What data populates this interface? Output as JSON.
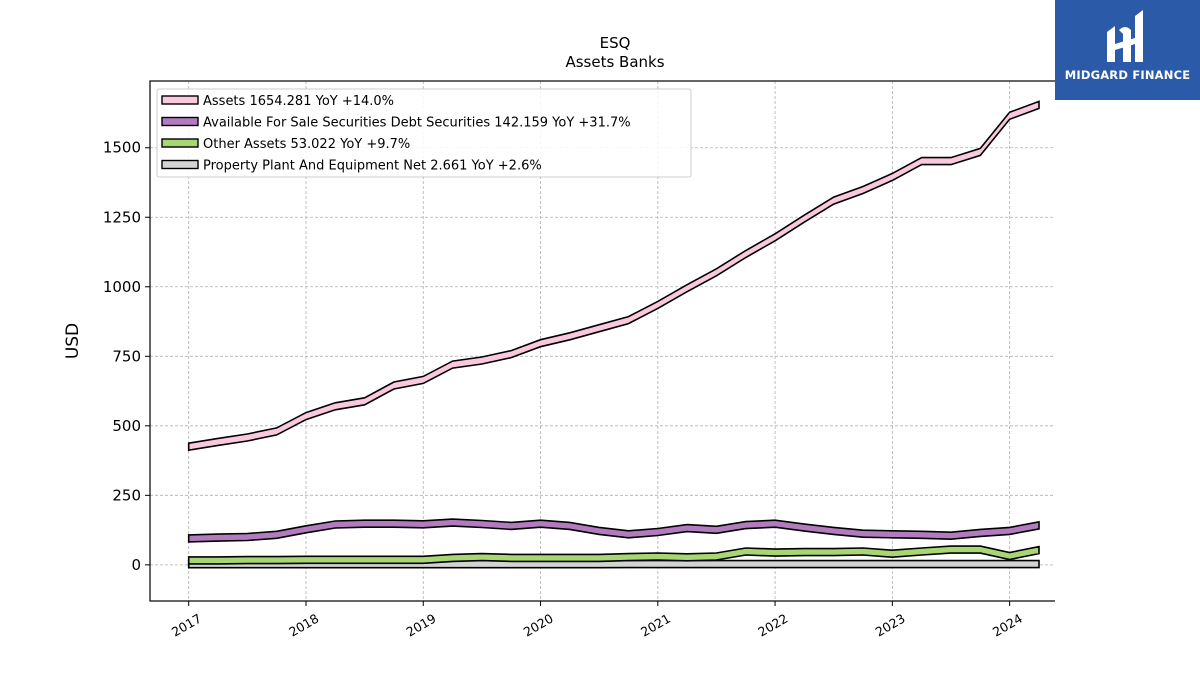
{
  "chart_data": {
    "type": "line",
    "title": "ESQ",
    "subtitle": "Assets Banks",
    "ylabel": "USD",
    "xlabel": "",
    "xlim": [
      2016.67,
      2024.6
    ],
    "ylim": [
      -130,
      1740
    ],
    "yticks": [
      0,
      250,
      500,
      750,
      1000,
      1250,
      1500
    ],
    "xticks": [
      2017,
      2018,
      2019,
      2020,
      2021,
      2022,
      2023,
      2024
    ],
    "grid": true,
    "legend_position": "top-left",
    "x": [
      2017.0,
      2017.25,
      2017.5,
      2017.75,
      2018.0,
      2018.25,
      2018.5,
      2018.75,
      2019.0,
      2019.25,
      2019.5,
      2019.75,
      2020.0,
      2020.25,
      2020.5,
      2020.75,
      2021.0,
      2021.25,
      2021.5,
      2021.75,
      2022.0,
      2022.25,
      2022.5,
      2022.75,
      2023.0,
      2023.25,
      2023.5,
      2023.75,
      2024.0,
      2024.25
    ],
    "series": [
      {
        "name": "Assets",
        "legend": "Assets  1654.281 YoY +14.0%",
        "color": "#f9c8dc",
        "values": [
          425,
          442,
          458,
          480,
          535,
          570,
          588,
          645,
          665,
          720,
          735,
          758,
          797,
          822,
          851,
          880,
          935,
          995,
          1052,
          1118,
          1178,
          1245,
          1310,
          1348,
          1395,
          1452,
          1452,
          1485,
          1615,
          1654
        ]
      },
      {
        "name": "Available For Sale Securities Debt Securities",
        "legend": "Available For Sale Securities Debt Securities  142.159 YoY +31.7%",
        "color": "#b27bbd",
        "values": [
          95,
          98,
          100,
          108,
          128,
          145,
          148,
          148,
          146,
          152,
          147,
          140,
          148,
          140,
          122,
          110,
          118,
          132,
          126,
          143,
          148,
          134,
          122,
          112,
          110,
          108,
          105,
          115,
          122,
          142
        ]
      },
      {
        "name": "Other Assets",
        "legend": "Other Assets  53.022 YoY +9.7%",
        "color": "#a8d672",
        "values": [
          16,
          16,
          17,
          17,
          18,
          18,
          18,
          18,
          18,
          25,
          28,
          25,
          25,
          25,
          25,
          28,
          30,
          27,
          30,
          48,
          44,
          46,
          46,
          48,
          40,
          48,
          55,
          55,
          32,
          53
        ]
      },
      {
        "name": "Property Plant And Equipment Net",
        "legend": "Property Plant And Equipment Net  2.661 YoY +2.6%",
        "color": "#d3d3d3",
        "values": [
          2.2,
          2.2,
          2.2,
          2.3,
          2.3,
          2.3,
          2.4,
          2.4,
          2.4,
          2.5,
          2.5,
          2.5,
          2.5,
          2.5,
          2.5,
          2.6,
          2.6,
          2.6,
          2.6,
          2.6,
          2.6,
          2.6,
          2.6,
          2.6,
          2.6,
          2.6,
          2.6,
          2.6,
          2.6,
          2.661
        ]
      }
    ]
  },
  "logo": {
    "text": "MIDGARD FINANCE",
    "color": "#2a5aa8"
  }
}
